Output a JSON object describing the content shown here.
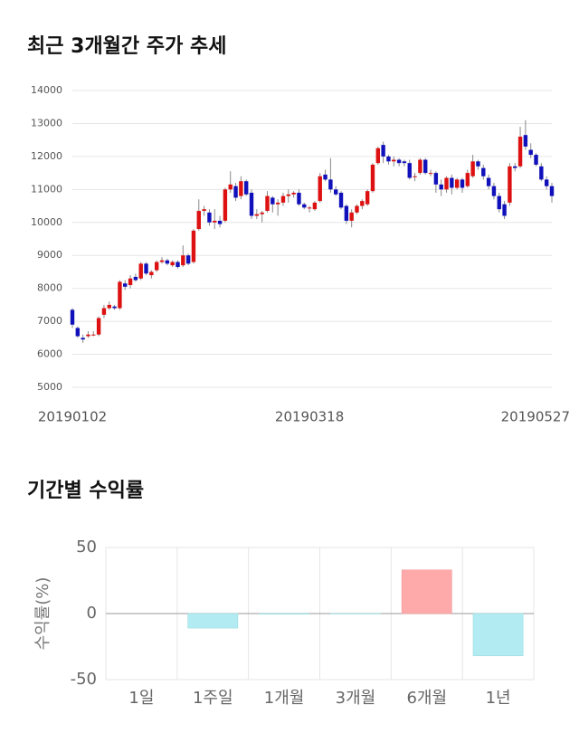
{
  "chart_data": [
    {
      "type": "candlestick",
      "title": "최근 3개월간 주가 추세",
      "up_color": "#dd1111",
      "down_color": "#1111bb",
      "ylim": [
        5000,
        14000
      ],
      "yticks": [
        5000,
        6000,
        7000,
        8000,
        9000,
        10000,
        11000,
        12000,
        13000,
        14000
      ],
      "grid": true,
      "categories": [
        "20190102",
        null,
        null,
        null,
        null,
        null,
        null,
        null,
        null,
        null,
        null,
        null,
        null,
        null,
        null,
        null,
        null,
        null,
        null,
        null,
        null,
        null,
        null,
        null,
        null,
        null,
        null,
        null,
        null,
        null,
        null,
        null,
        null,
        null,
        null,
        null,
        null,
        null,
        null,
        null,
        null,
        null,
        null,
        null,
        null,
        "20190318",
        null,
        null,
        null,
        null,
        null,
        null,
        null,
        null,
        null,
        null,
        null,
        null,
        null,
        null,
        null,
        null,
        null,
        null,
        null,
        null,
        null,
        null,
        null,
        null,
        null,
        null,
        null,
        null,
        null,
        null,
        null,
        null,
        null,
        null,
        null,
        null,
        null,
        null,
        null,
        null,
        null,
        null,
        null,
        null,
        null,
        "20190527"
      ],
      "ohlc": [
        [
          7350,
          7400,
          6800,
          6900
        ],
        [
          6800,
          6850,
          6500,
          6550
        ],
        [
          6500,
          6600,
          6350,
          6450
        ],
        [
          6550,
          6700,
          6500,
          6600
        ],
        [
          6600,
          6700,
          6550,
          6600
        ],
        [
          6600,
          7150,
          6550,
          7100
        ],
        [
          7200,
          7500,
          7100,
          7400
        ],
        [
          7400,
          7600,
          7350,
          7500
        ],
        [
          7450,
          7500,
          7350,
          7400
        ],
        [
          7400,
          8250,
          7350,
          8200
        ],
        [
          8150,
          8250,
          7950,
          8050
        ],
        [
          8100,
          8400,
          8000,
          8300
        ],
        [
          8350,
          8450,
          8200,
          8250
        ],
        [
          8300,
          8800,
          8250,
          8750
        ],
        [
          8750,
          8800,
          8400,
          8450
        ],
        [
          8400,
          8550,
          8300,
          8500
        ],
        [
          8550,
          8850,
          8500,
          8800
        ],
        [
          8800,
          8950,
          8750,
          8850
        ],
        [
          8850,
          8900,
          8700,
          8750
        ],
        [
          8700,
          8850,
          8650,
          8800
        ],
        [
          8800,
          8850,
          8600,
          8650
        ],
        [
          8700,
          9300,
          8650,
          9000
        ],
        [
          9000,
          9050,
          8700,
          8750
        ],
        [
          8800,
          9800,
          8750,
          9750
        ],
        [
          9800,
          10700,
          9750,
          10350
        ],
        [
          10350,
          10500,
          10200,
          10400
        ],
        [
          10300,
          10400,
          9900,
          10000
        ],
        [
          10000,
          10400,
          9800,
          10050
        ],
        [
          10050,
          10200,
          9850,
          9950
        ],
        [
          10050,
          11050,
          10000,
          11000
        ],
        [
          11000,
          11550,
          10900,
          11150
        ],
        [
          11100,
          11200,
          10650,
          10750
        ],
        [
          10800,
          11400,
          10700,
          11250
        ],
        [
          11250,
          11300,
          10800,
          10850
        ],
        [
          10900,
          11000,
          10100,
          10200
        ],
        [
          10200,
          10400,
          10100,
          10250
        ],
        [
          10250,
          10350,
          10000,
          10300
        ],
        [
          10350,
          10950,
          10300,
          10800
        ],
        [
          10750,
          10800,
          10300,
          10550
        ],
        [
          10550,
          10700,
          10200,
          10600
        ],
        [
          10600,
          10900,
          10500,
          10800
        ],
        [
          10800,
          11000,
          10600,
          10850
        ],
        [
          10850,
          10950,
          10750,
          10900
        ],
        [
          10900,
          11000,
          10500,
          10550
        ],
        [
          10550,
          10600,
          10400,
          10450
        ],
        [
          10450,
          10500,
          10300,
          10450
        ],
        [
          10400,
          10650,
          10350,
          10600
        ],
        [
          10650,
          11500,
          10600,
          11400
        ],
        [
          11450,
          11600,
          11250,
          11300
        ],
        [
          11300,
          11950,
          10900,
          11000
        ],
        [
          11000,
          11100,
          10800,
          10850
        ],
        [
          10900,
          10950,
          10400,
          10450
        ],
        [
          10500,
          10550,
          9950,
          10050
        ],
        [
          10050,
          10400,
          9850,
          10300
        ],
        [
          10300,
          10550,
          10250,
          10500
        ],
        [
          10500,
          10700,
          10400,
          10650
        ],
        [
          10550,
          11000,
          10500,
          10950
        ],
        [
          10950,
          11800,
          10900,
          11750
        ],
        [
          11800,
          12300,
          11750,
          12250
        ],
        [
          12350,
          12450,
          11800,
          12000
        ],
        [
          12000,
          12050,
          11750,
          11850
        ],
        [
          11850,
          12000,
          11700,
          11900
        ],
        [
          11900,
          11950,
          11700,
          11800
        ],
        [
          11850,
          11900,
          11700,
          11800
        ],
        [
          11800,
          11900,
          11300,
          11350
        ],
        [
          11400,
          11500,
          11250,
          11400
        ],
        [
          11500,
          11950,
          11450,
          11900
        ],
        [
          11900,
          11950,
          11450,
          11500
        ],
        [
          11500,
          11600,
          11400,
          11500
        ],
        [
          11500,
          11550,
          10900,
          11150
        ],
        [
          11150,
          11300,
          10800,
          11000
        ],
        [
          11000,
          11400,
          10900,
          11350
        ],
        [
          11350,
          11450,
          10850,
          11050
        ],
        [
          11050,
          11350,
          11000,
          11300
        ],
        [
          11300,
          11350,
          10900,
          11050
        ],
        [
          11100,
          11600,
          11050,
          11500
        ],
        [
          11400,
          12050,
          11350,
          11850
        ],
        [
          11850,
          11900,
          11600,
          11700
        ],
        [
          11650,
          11750,
          11300,
          11400
        ],
        [
          11350,
          11450,
          11000,
          11100
        ],
        [
          11100,
          11200,
          10700,
          10800
        ],
        [
          10800,
          10900,
          10300,
          10400
        ],
        [
          10550,
          10650,
          10100,
          10200
        ],
        [
          10600,
          11800,
          10500,
          11700
        ],
        [
          11700,
          11800,
          11550,
          11650
        ],
        [
          11700,
          12900,
          11650,
          12600
        ],
        [
          12650,
          13100,
          12200,
          12300
        ],
        [
          12200,
          12400,
          11950,
          12050
        ],
        [
          12050,
          12100,
          11700,
          11750
        ],
        [
          11700,
          11800,
          11250,
          11300
        ],
        [
          11300,
          11400,
          11000,
          11100
        ],
        [
          11100,
          11200,
          10600,
          10800
        ]
      ]
    },
    {
      "type": "bar",
      "title": "기간별 수익률",
      "ylabel": "수익률(%)",
      "categories": [
        "1일",
        "1주일",
        "1개월",
        "3개월",
        "6개월",
        "1년"
      ],
      "values": [
        0,
        -11,
        -0.5,
        -0.3,
        33,
        -32
      ],
      "positive_color": "#ffaaaa",
      "negative_color": "#b3ebf3",
      "ylim": [
        -50,
        50
      ],
      "yticks": [
        -50,
        0,
        50
      ],
      "grid": true
    }
  ]
}
